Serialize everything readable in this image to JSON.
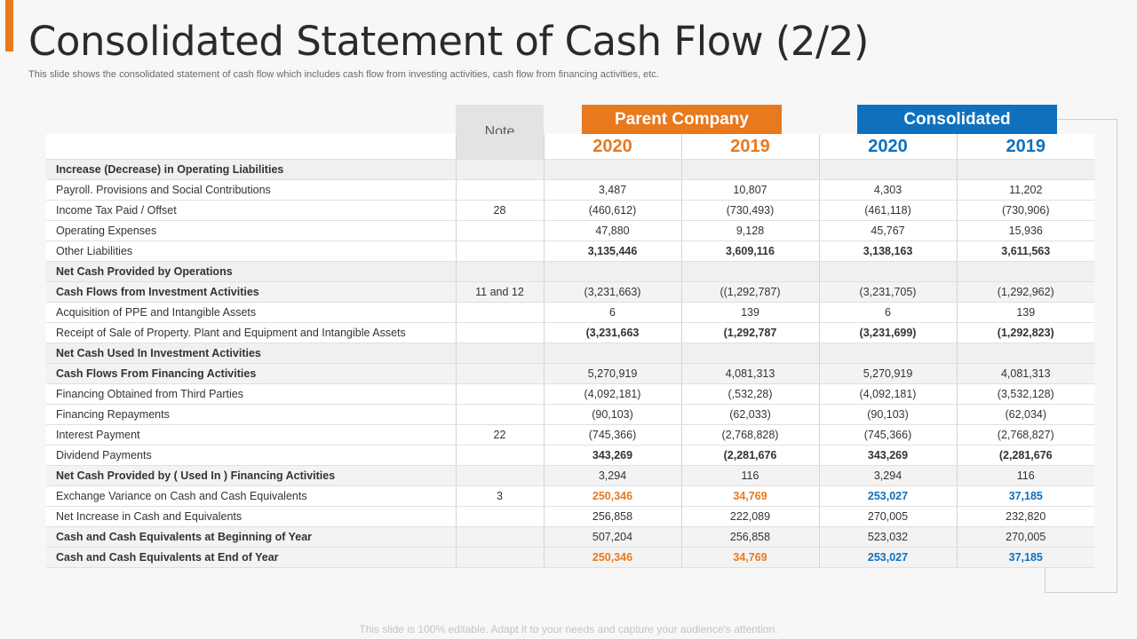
{
  "title": "Consolidated Statement of Cash Flow (2/2)",
  "subtitle": "This slide shows the consolidated statement of cash flow which includes cash flow from investing activities, cash flow from financing activities, etc.",
  "note_header": "Note",
  "groups": {
    "parent": "Parent Company",
    "consolidated": "Consolidated"
  },
  "years": {
    "p2020": "2020",
    "p2019": "2019",
    "c2020": "2020",
    "c2019": "2019"
  },
  "colors": {
    "accent_orange": "#e8791d",
    "accent_blue": "#0f70bd"
  },
  "rows": [
    {
      "label": "Increase (Decrease) in Operating Liabilities",
      "note": "",
      "p2020": "",
      "p2019": "",
      "c2020": "",
      "c2019": ""
    },
    {
      "label": "Payroll. Provisions and Social Contributions",
      "note": "",
      "p2020": "3,487",
      "p2019": "10,807",
      "c2020": "4,303",
      "c2019": "11,202"
    },
    {
      "label": "Income Tax Paid / Offset",
      "note": "28",
      "p2020": "(460,612)",
      "p2019": "(730,493)",
      "c2020": "(461,118)",
      "c2019": "(730,906)"
    },
    {
      "label": "Operating Expenses",
      "note": "",
      "p2020": "47,880",
      "p2019": "9,128",
      "c2020": "45,767",
      "c2019": "15,936"
    },
    {
      "label": "Other Liabilities",
      "note": "",
      "p2020": "3,135,446",
      "p2019": "3,609,116",
      "c2020": "3,138,163",
      "c2019": "3,611,563"
    },
    {
      "label": "Net Cash Provided by Operations",
      "note": "",
      "p2020": "",
      "p2019": "",
      "c2020": "",
      "c2019": ""
    },
    {
      "label": "Cash Flows from Investment Activities",
      "note": "11 and 12",
      "p2020": "(3,231,663)",
      "p2019": "((1,292,787)",
      "c2020": "(3,231,705)",
      "c2019": "(1,292,962)"
    },
    {
      "label": "Acquisition of PPE and Intangible Assets",
      "note": "",
      "p2020": "6",
      "p2019": "139",
      "c2020": "6",
      "c2019": "139"
    },
    {
      "label": "Receipt of Sale of Property. Plant and Equipment and Intangible Assets",
      "note": "",
      "p2020": "(3,231,663",
      "p2019": "(1,292,787",
      "c2020": "(3,231,699)",
      "c2019": "(1,292,823)"
    },
    {
      "label": "Net Cash Used In Investment Activities",
      "note": "",
      "p2020": "",
      "p2019": "",
      "c2020": "",
      "c2019": ""
    },
    {
      "label": "Cash Flows From Financing Activities",
      "note": "",
      "p2020": "5,270,919",
      "p2019": "4,081,313",
      "c2020": "5,270,919",
      "c2019": "4,081,313"
    },
    {
      "label": "Financing Obtained from Third Parties",
      "note": "",
      "p2020": "(4,092,181)",
      "p2019": "(,532,28)",
      "c2020": "(4,092,181)",
      "c2019": "(3,532,128)"
    },
    {
      "label": "Financing Repayments",
      "note": "",
      "p2020": "(90,103)",
      "p2019": "(62,033)",
      "c2020": "(90,103)",
      "c2019": "(62,034)"
    },
    {
      "label": "Interest Payment",
      "note": "22",
      "p2020": "(745,366)",
      "p2019": "(2,768,828)",
      "c2020": "(745,366)",
      "c2019": "(2,768,827)"
    },
    {
      "label": "Dividend Payments",
      "note": "",
      "p2020": "343,269",
      "p2019": "(2,281,676",
      "c2020": "343,269",
      "c2019": "(2,281,676"
    },
    {
      "label": "Net Cash Provided by ( Used In ) Financing Activities",
      "note": "",
      "p2020": "3,294",
      "p2019": "116",
      "c2020": "3,294",
      "c2019": "116"
    },
    {
      "label": "Exchange Variance on Cash and Cash Equivalents",
      "note": "3",
      "p2020": "250,346",
      "p2019": "34,769",
      "c2020": "253,027",
      "c2019": "37,185"
    },
    {
      "label": "Net Increase in Cash and Equivalents",
      "note": "",
      "p2020": "256,858",
      "p2019": "222,089",
      "c2020": "270,005",
      "c2019": "232,820"
    },
    {
      "label": "Cash and Cash Equivalents at Beginning of Year",
      "note": "",
      "p2020": "507,204",
      "p2019": "256,858",
      "c2020": "523,032",
      "c2019": "270,005"
    },
    {
      "label": "Cash and Cash Equivalents at End of Year",
      "note": "",
      "p2020": "250,346",
      "p2019": "34,769",
      "c2020": "253,027",
      "c2019": "37,185"
    }
  ],
  "footer": "This slide is 100% editable. Adapt it to your needs and capture your audience's attention."
}
